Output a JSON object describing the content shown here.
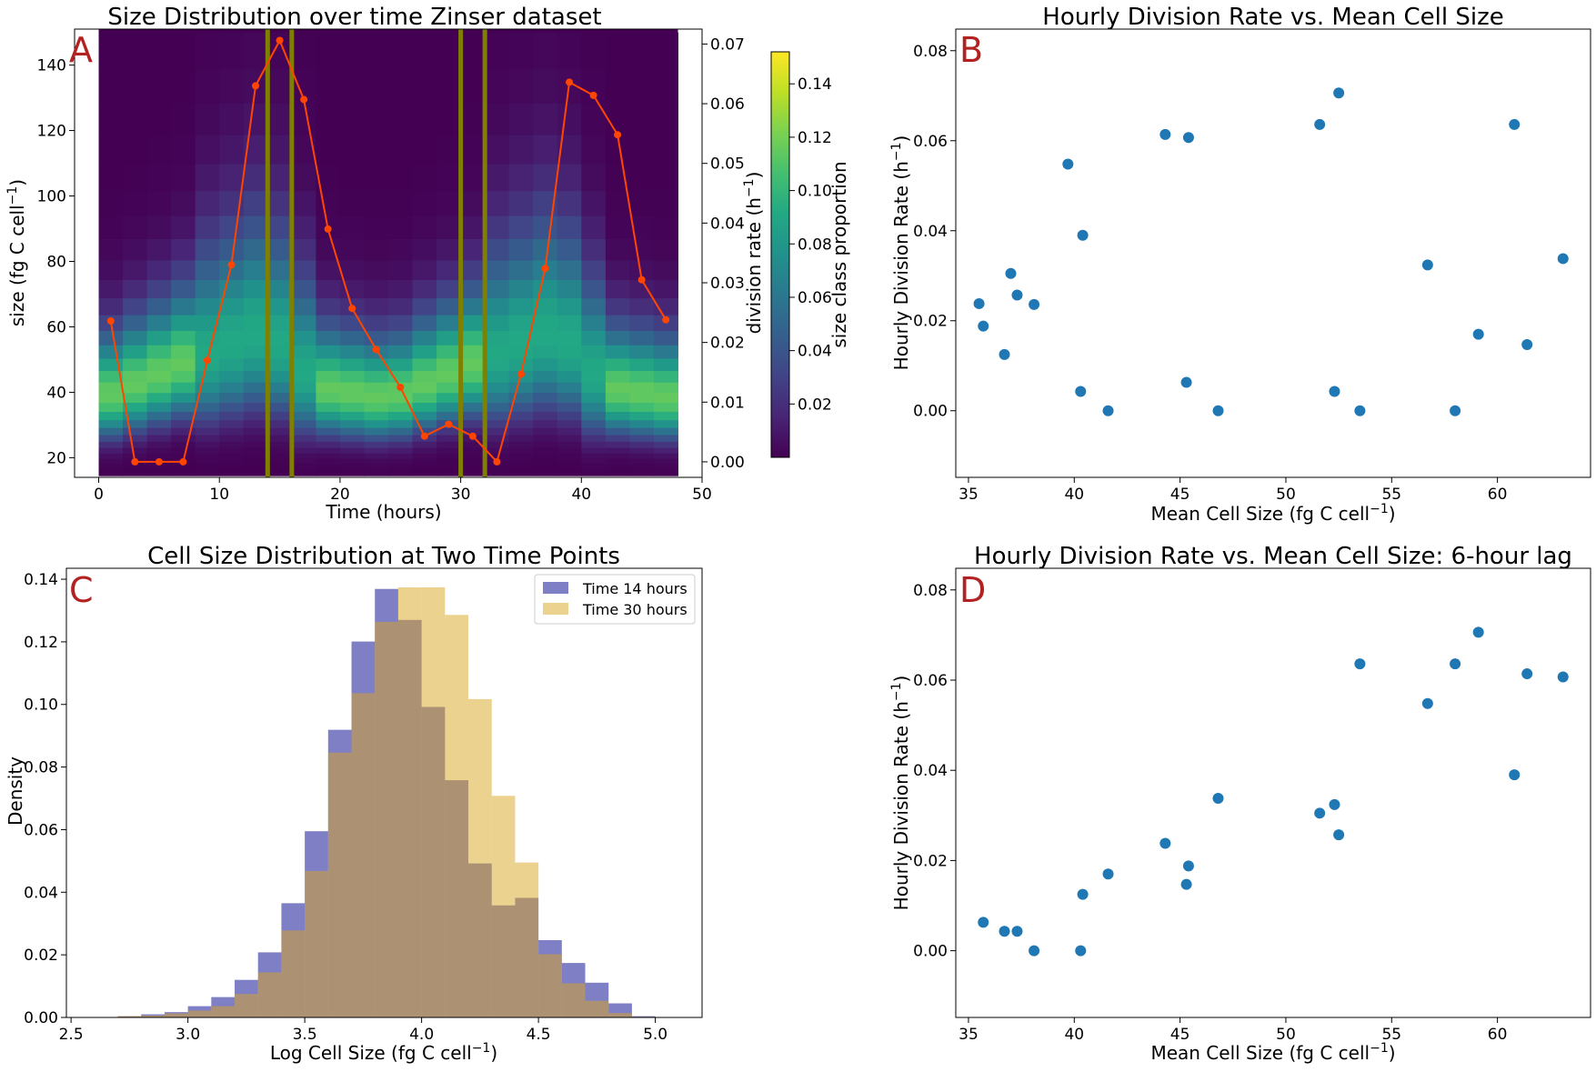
{
  "chart_data": [
    {
      "id": "A",
      "type": "heatmap",
      "panel_letter": "A",
      "title": "Size Distribution over time Zinser dataset",
      "xlabel": "Time (hours)",
      "ylabel": "size (fg C cell",
      "ylabel_sup": "−1",
      "ylabel_tail": ")",
      "y2label": "division rate (h",
      "y2label_sup": "−1",
      "y2label_tail": ")",
      "colorbar_label": "size class proportion",
      "xlim": [
        -2,
        50
      ],
      "ylim": [
        14,
        151
      ],
      "y2lim": [
        -0.0026,
        0.0725
      ],
      "xticks": [
        0,
        10,
        20,
        30,
        40,
        50
      ],
      "yticks": [
        20,
        40,
        60,
        80,
        100,
        120,
        140
      ],
      "y2ticks": [
        0.0,
        0.01,
        0.02,
        0.03,
        0.04,
        0.05,
        0.06,
        0.07
      ],
      "y2tick_labels": [
        "0.00",
        "0.01",
        "0.02",
        "0.03",
        "0.04",
        "0.05",
        "0.06",
        "0.07"
      ],
      "colorbar_ticks": [
        0.02,
        0.04,
        0.06,
        0.08,
        0.1,
        0.12,
        0.14
      ],
      "colorbar_tick_labels": [
        "0.02",
        "0.04",
        "0.06",
        "0.08",
        "0.10",
        "0.12",
        "0.14"
      ],
      "colorbar_range": [
        0.0,
        0.152
      ],
      "colormap": "viridis",
      "vertical_lines": {
        "x": [
          14,
          16,
          30,
          32
        ],
        "color": "#808000"
      },
      "division_rate_series": {
        "color": "#ff4500",
        "x": [
          1,
          3,
          5,
          7,
          9,
          11,
          13,
          15,
          17,
          19,
          21,
          23,
          25,
          27,
          29,
          31,
          33,
          35,
          37,
          39,
          41,
          43,
          45,
          47
        ],
        "y": [
          0.0236,
          0.0,
          0.0,
          0.0,
          0.017,
          0.033,
          0.063,
          0.0706,
          0.0607,
          0.039,
          0.0257,
          0.0188,
          0.0125,
          0.0043,
          0.0063,
          0.0043,
          0.0,
          0.0147,
          0.0324,
          0.0636,
          0.0614,
          0.0548,
          0.0305,
          0.0238
        ]
      }
    },
    {
      "id": "B",
      "type": "scatter",
      "panel_letter": "B",
      "title": "Hourly Division Rate vs. Mean Cell Size",
      "xlabel": "Mean Cell Size (fg C cell",
      "xlabel_sup": "−1",
      "xlabel_tail": ")",
      "ylabel": "Hourly Division Rate (h",
      "ylabel_sup": "−1",
      "ylabel_tail": ")",
      "xlim": [
        34.4,
        64.4
      ],
      "ylim": [
        -0.0148,
        0.0848
      ],
      "xticks": [
        35,
        40,
        45,
        50,
        55,
        60
      ],
      "yticks": [
        0.0,
        0.02,
        0.04,
        0.06,
        0.08
      ],
      "ytick_labels": [
        "0.00",
        "0.02",
        "0.04",
        "0.06",
        "0.08"
      ],
      "color": "#1f77b4",
      "x": [
        35.5,
        35.7,
        36.7,
        37.0,
        37.3,
        38.1,
        39.7,
        40.3,
        40.4,
        41.6,
        44.3,
        45.3,
        45.4,
        46.8,
        51.6,
        52.3,
        52.5,
        53.5,
        56.7,
        58.0,
        59.1,
        60.8,
        61.4,
        63.1
      ],
      "y": [
        0.0238,
        0.0188,
        0.0125,
        0.0305,
        0.0257,
        0.0236,
        0.0548,
        0.0043,
        0.039,
        0.0,
        0.0614,
        0.0063,
        0.0607,
        0.0,
        0.0636,
        0.0043,
        0.0706,
        0.0,
        0.0324,
        0.0,
        0.017,
        0.0636,
        0.0147,
        0.0338
      ]
    },
    {
      "id": "C",
      "type": "bar",
      "subtype": "histogram",
      "panel_letter": "C",
      "title": "Cell Size Distribution at Two Time Points",
      "xlabel": "Log Cell Size (fg C cell",
      "xlabel_sup": "−1",
      "xlabel_tail": ")",
      "ylabel": "Density",
      "xlim": [
        2.48,
        5.2
      ],
      "ylim": [
        0,
        0.1435
      ],
      "xticks": [
        2.5,
        3.0,
        3.5,
        4.0,
        4.5,
        5.0
      ],
      "xtick_labels": [
        "2.5",
        "3.0",
        "3.5",
        "4.0",
        "4.5",
        "5.0"
      ],
      "yticks": [
        0.0,
        0.02,
        0.04,
        0.06,
        0.08,
        0.1,
        0.12,
        0.14
      ],
      "ytick_labels": [
        "0.00",
        "0.02",
        "0.04",
        "0.06",
        "0.08",
        "0.10",
        "0.12",
        "0.14"
      ],
      "legend_position": "top-right",
      "bin_edges": [
        2.7,
        2.8,
        2.9,
        3.0,
        3.1,
        3.2,
        3.3,
        3.4,
        3.5,
        3.6,
        3.7,
        3.8,
        3.9,
        4.0,
        4.1,
        4.2,
        4.3,
        4.4,
        4.5,
        4.6,
        4.7,
        4.8,
        4.9,
        5.0
      ],
      "series": [
        {
          "name": "Time 14 hours",
          "color": "#00008b",
          "opacity": 0.5,
          "values": [
            0.0004,
            0.001,
            0.0017,
            0.0036,
            0.0065,
            0.012,
            0.0208,
            0.0365,
            0.0595,
            0.0919,
            0.1201,
            0.1369,
            0.127,
            0.0992,
            0.0758,
            0.0492,
            0.0358,
            0.0382,
            0.0247,
            0.0174,
            0.0111,
            0.0045,
            0.0004
          ]
        },
        {
          "name": "Time 30 hours",
          "color": "#daa520",
          "opacity": 0.5,
          "values": [
            0.0004,
            0.0006,
            0.0013,
            0.0022,
            0.0036,
            0.0075,
            0.0144,
            0.0278,
            0.0468,
            0.0846,
            0.1036,
            0.1264,
            0.1374,
            0.1374,
            0.1286,
            0.1017,
            0.0708,
            0.0495,
            0.0202,
            0.0109,
            0.0053,
            0.0014,
            0.0002
          ]
        }
      ]
    },
    {
      "id": "D",
      "type": "scatter",
      "panel_letter": "D",
      "title": "Hourly Division Rate vs. Mean Cell Size: 6-hour lag",
      "xlabel": "Mean Cell Size (fg C cell",
      "xlabel_sup": "−1",
      "xlabel_tail": ")",
      "ylabel": "Hourly Division Rate (h",
      "ylabel_sup": "−1",
      "ylabel_tail": ")",
      "xlim": [
        34.4,
        64.4
      ],
      "ylim": [
        -0.0148,
        0.0848
      ],
      "xticks": [
        35,
        40,
        45,
        50,
        55,
        60
      ],
      "yticks": [
        0.0,
        0.02,
        0.04,
        0.06,
        0.08
      ],
      "ytick_labels": [
        "0.00",
        "0.02",
        "0.04",
        "0.06",
        "0.08"
      ],
      "color": "#1f77b4",
      "x": [
        35.7,
        36.7,
        37.3,
        38.1,
        40.3,
        40.4,
        41.6,
        44.3,
        45.3,
        45.4,
        46.8,
        51.6,
        52.3,
        52.5,
        53.5,
        56.7,
        58.0,
        59.1,
        60.8,
        61.4,
        63.1
      ],
      "y": [
        0.0063,
        0.0043,
        0.0043,
        0.0,
        0.0,
        0.0125,
        0.017,
        0.0238,
        0.0147,
        0.0188,
        0.0338,
        0.0305,
        0.0324,
        0.0257,
        0.0636,
        0.0548,
        0.0636,
        0.0706,
        0.039,
        0.0614,
        0.0607
      ]
    }
  ]
}
